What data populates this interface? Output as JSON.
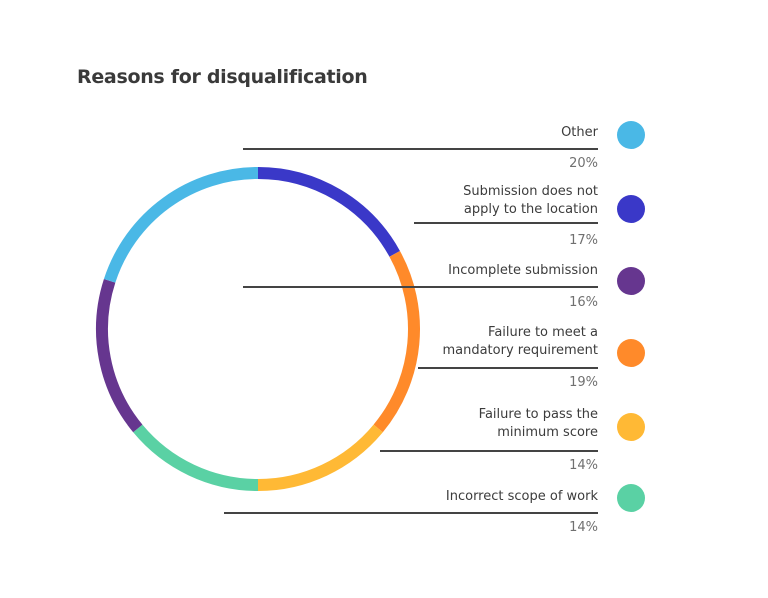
{
  "title": "Reasons for disqualification",
  "legend": [
    {
      "label_lines": [
        "Other"
      ],
      "percent": "20%",
      "color": "#4ab8e6"
    },
    {
      "label_lines": [
        "Submission does not",
        "apply to the location"
      ],
      "percent": "17%",
      "color": "#3a38c8"
    },
    {
      "label_lines": [
        "Incomplete submission"
      ],
      "percent": "16%",
      "color": "#66368f"
    },
    {
      "label_lines": [
        "Failure to meet a",
        "mandatory requirement"
      ],
      "percent": "19%",
      "color": "#ff8a2a"
    },
    {
      "label_lines": [
        "Failure to pass the",
        "minimum score"
      ],
      "percent": "14%",
      "color": "#ffb935"
    },
    {
      "label_lines": [
        "Incorrect scope of work"
      ],
      "percent": "14%",
      "color": "#5ad1a4"
    }
  ],
  "chart_data": {
    "type": "pie",
    "subtype": "donut-ring",
    "title": "Reasons for disqualification",
    "categories": [
      "Other",
      "Submission does not apply to the location",
      "Incomplete submission",
      "Failure to meet a mandatory requirement",
      "Failure to pass the minimum score",
      "Incorrect scope of work"
    ],
    "values": [
      20,
      17,
      16,
      19,
      14,
      14
    ],
    "unit": "%",
    "colors": [
      "#4ab8e6",
      "#3a38c8",
      "#66368f",
      "#ff8a2a",
      "#ffb935",
      "#5ad1a4"
    ],
    "ring_order_clockwise_from_top": [
      "Submission does not apply to the location",
      "Failure to meet a mandatory requirement",
      "Failure to pass the minimum score",
      "Incorrect scope of work",
      "Incomplete submission",
      "Other"
    ],
    "legend_position": "right"
  }
}
